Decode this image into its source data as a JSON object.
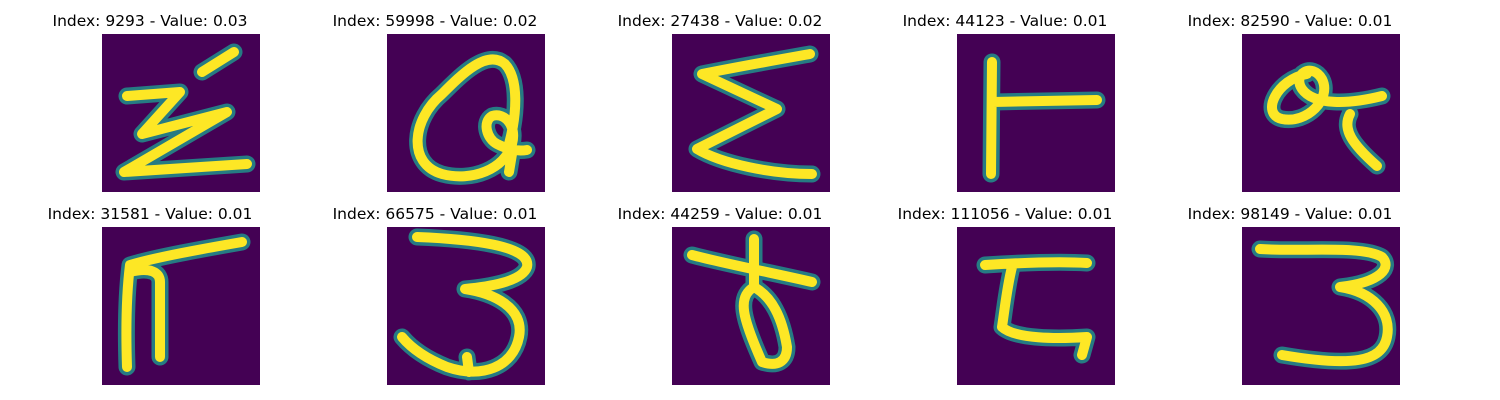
{
  "colors": {
    "background": "#440154",
    "stroke": "#fde725",
    "edge": "#21918c"
  },
  "samples": [
    {
      "title": "Index: 9293 - Value: 0.03",
      "glyph": "Z-with-stroke"
    },
    {
      "title": "Index: 59998 - Value: 0.02",
      "glyph": "Q"
    },
    {
      "title": "Index: 27438 - Value: 0.02",
      "glyph": "sigma"
    },
    {
      "title": "Index: 44123 - Value: 0.01",
      "glyph": "T-sideways"
    },
    {
      "title": "Index: 82590 - Value: 0.01",
      "glyph": "alpha"
    },
    {
      "title": "Index: 31581 - Value: 0.01",
      "glyph": "pi"
    },
    {
      "title": "Index: 66575 - Value: 0.01",
      "glyph": "3"
    },
    {
      "title": "Index: 44259 - Value: 0.01",
      "glyph": "b-slanted"
    },
    {
      "title": "Index: 111056 - Value: 0.01",
      "glyph": "I-slab"
    },
    {
      "title": "Index: 98149 - Value: 0.01",
      "glyph": "3"
    }
  ]
}
